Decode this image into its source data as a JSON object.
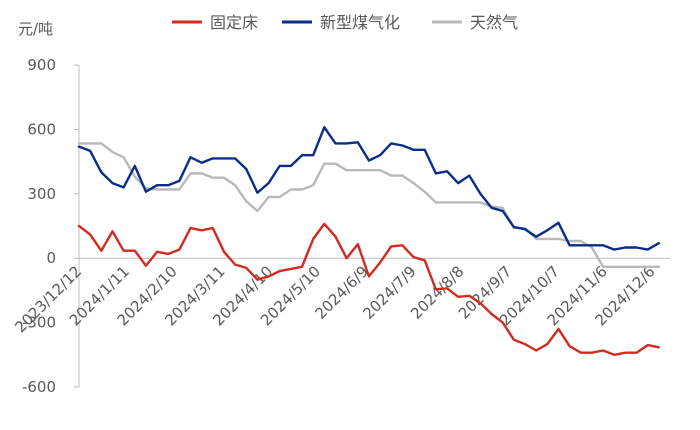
{
  "chart_data": {
    "type": "line",
    "title": "",
    "xlabel": "",
    "ylabel": "元/吨",
    "ylim": [
      -600,
      900
    ],
    "yticks": [
      -600,
      -300,
      0,
      300,
      600,
      900
    ],
    "grid": false,
    "legend_position": "top",
    "x_tick_labels": [
      "2023/12/12",
      "2024/1/11",
      "2024/2/10",
      "2024/3/11",
      "2024/4/10",
      "2024/5/10",
      "2024/6/9",
      "2024/7/9",
      "2024/8/8",
      "2024/9/7",
      "2024/10/7",
      "2024/11/6",
      "2024/12/6"
    ],
    "x": [
      "2023-12-12",
      "2023-12-15",
      "2023-12-19",
      "2023-12-22",
      "2023-12-26",
      "2023-12-29",
      "2024-01-02",
      "2024-01-05",
      "2024-01-09",
      "2024-01-12",
      "2024-01-16",
      "2024-01-19",
      "2024-01-23",
      "2024-01-26",
      "2024-01-30",
      "2024-02-02",
      "2024-02-06",
      "2024-02-09",
      "2024-02-13",
      "2024-02-16",
      "2024-02-20",
      "2024-02-23",
      "2024-02-27",
      "2024-03-01",
      "2024-03-05",
      "2024-03-08",
      "2024-03-12",
      "2024-03-15",
      "2024-03-19",
      "2024-03-22",
      "2024-03-26",
      "2024-03-29",
      "2024-04-02",
      "2024-04-05",
      "2024-04-09",
      "2024-04-12",
      "2024-04-16",
      "2024-04-19",
      "2024-04-23",
      "2024-04-26",
      "2024-04-30",
      "2024-05-03",
      "2024-05-07",
      "2024-05-10",
      "2024-05-14",
      "2024-05-17",
      "2024-05-21",
      "2024-05-24",
      "2024-05-28",
      "2024-05-31",
      "2024-06-04",
      "2024-06-07",
      "2024-06-11",
      "2024-06-14",
      "2024-06-18",
      "2024-06-21",
      "2024-06-25",
      "2024-06-28",
      "2024-07-02",
      "2024-07-05",
      "2024-07-09",
      "2024-07-12",
      "2024-07-16",
      "2024-07-19",
      "2024-07-23",
      "2024-07-26",
      "2024-07-30",
      "2024-08-02",
      "2024-08-06",
      "2024-08-09",
      "2024-08-13",
      "2024-08-16",
      "2024-08-20",
      "2024-08-23",
      "2024-08-27",
      "2024-08-30",
      "2024-09-03",
      "2024-09-06",
      "2024-09-10",
      "2024-09-13",
      "2024-09-17",
      "2024-09-20",
      "2024-09-24",
      "2024-09-27",
      "2024-10-01",
      "2024-10-04",
      "2024-10-08",
      "2024-10-11",
      "2024-10-15",
      "2024-10-18",
      "2024-10-22",
      "2024-10-25",
      "2024-10-29",
      "2024-11-01",
      "2024-11-05",
      "2024-11-08",
      "2024-11-12",
      "2024-11-15",
      "2024-11-19",
      "2024-11-22",
      "2024-11-26",
      "2024-11-29",
      "2024-12-03",
      "2024-12-06",
      "2024-12-10",
      "2024-12-13",
      "2024-12-17"
    ],
    "series": [
      {
        "name": "固定床",
        "color": "#d42a20",
        "points": [
          [
            "2023-12-12",
            150
          ],
          [
            "2023-12-19",
            110
          ],
          [
            "2023-12-26",
            35
          ],
          [
            "2024-01-02",
            125
          ],
          [
            "2024-01-09",
            35
          ],
          [
            "2024-01-16",
            35
          ],
          [
            "2024-01-23",
            -35
          ],
          [
            "2024-01-30",
            30
          ],
          [
            "2024-02-06",
            20
          ],
          [
            "2024-02-13",
            40
          ],
          [
            "2024-02-20",
            140
          ],
          [
            "2024-02-27",
            130
          ],
          [
            "2024-03-05",
            140
          ],
          [
            "2024-03-12",
            30
          ],
          [
            "2024-03-19",
            -30
          ],
          [
            "2024-03-26",
            -45
          ],
          [
            "2024-04-02",
            -100
          ],
          [
            "2024-04-09",
            -85
          ],
          [
            "2024-04-16",
            -60
          ],
          [
            "2024-04-23",
            -50
          ],
          [
            "2024-04-30",
            -40
          ],
          [
            "2024-05-07",
            90
          ],
          [
            "2024-05-14",
            160
          ],
          [
            "2024-05-21",
            100
          ],
          [
            "2024-05-28",
            0
          ],
          [
            "2024-06-04",
            65
          ],
          [
            "2024-06-11",
            -85
          ],
          [
            "2024-06-18",
            -20
          ],
          [
            "2024-06-25",
            55
          ],
          [
            "2024-07-02",
            60
          ],
          [
            "2024-07-09",
            5
          ],
          [
            "2024-07-16",
            -10
          ],
          [
            "2024-07-23",
            -145
          ],
          [
            "2024-07-30",
            -140
          ],
          [
            "2024-08-06",
            -180
          ],
          [
            "2024-08-13",
            -175
          ],
          [
            "2024-08-20",
            -210
          ],
          [
            "2024-08-27",
            -260
          ],
          [
            "2024-09-03",
            -300
          ],
          [
            "2024-09-10",
            -380
          ],
          [
            "2024-09-17",
            -400
          ],
          [
            "2024-09-24",
            -430
          ],
          [
            "2024-10-01",
            -400
          ],
          [
            "2024-10-08",
            -330
          ],
          [
            "2024-10-15",
            -410
          ],
          [
            "2024-10-22",
            -440
          ],
          [
            "2024-10-29",
            -440
          ],
          [
            "2024-11-05",
            -430
          ],
          [
            "2024-11-12",
            -450
          ],
          [
            "2024-11-19",
            -440
          ],
          [
            "2024-11-26",
            -440
          ],
          [
            "2024-12-03",
            -405
          ],
          [
            "2024-12-10",
            -415
          ]
        ]
      },
      {
        "name": "新型煤气化",
        "color": "#0a2e86",
        "points": [
          [
            "2023-12-12",
            520
          ],
          [
            "2023-12-19",
            500
          ],
          [
            "2023-12-26",
            400
          ],
          [
            "2024-01-02",
            350
          ],
          [
            "2024-01-09",
            330
          ],
          [
            "2024-01-16",
            430
          ],
          [
            "2024-01-23",
            310
          ],
          [
            "2024-01-30",
            340
          ],
          [
            "2024-02-06",
            340
          ],
          [
            "2024-02-13",
            360
          ],
          [
            "2024-02-20",
            470
          ],
          [
            "2024-02-27",
            445
          ],
          [
            "2024-03-05",
            465
          ],
          [
            "2024-03-12",
            465
          ],
          [
            "2024-03-19",
            465
          ],
          [
            "2024-03-26",
            415
          ],
          [
            "2024-04-02",
            305
          ],
          [
            "2024-04-09",
            350
          ],
          [
            "2024-04-16",
            430
          ],
          [
            "2024-04-23",
            430
          ],
          [
            "2024-04-30",
            480
          ],
          [
            "2024-05-07",
            480
          ],
          [
            "2024-05-14",
            610
          ],
          [
            "2024-05-21",
            535
          ],
          [
            "2024-05-28",
            535
          ],
          [
            "2024-06-04",
            540
          ],
          [
            "2024-06-11",
            455
          ],
          [
            "2024-06-18",
            480
          ],
          [
            "2024-06-25",
            535
          ],
          [
            "2024-07-02",
            525
          ],
          [
            "2024-07-09",
            505
          ],
          [
            "2024-07-16",
            505
          ],
          [
            "2024-07-23",
            395
          ],
          [
            "2024-07-30",
            405
          ],
          [
            "2024-08-06",
            350
          ],
          [
            "2024-08-13",
            385
          ],
          [
            "2024-08-20",
            300
          ],
          [
            "2024-08-27",
            235
          ],
          [
            "2024-09-03",
            220
          ],
          [
            "2024-09-10",
            145
          ],
          [
            "2024-09-17",
            135
          ],
          [
            "2024-09-24",
            100
          ],
          [
            "2024-10-01",
            130
          ],
          [
            "2024-10-08",
            165
          ],
          [
            "2024-10-15",
            60
          ],
          [
            "2024-10-22",
            60
          ],
          [
            "2024-10-29",
            60
          ],
          [
            "2024-11-05",
            60
          ],
          [
            "2024-11-12",
            40
          ],
          [
            "2024-11-19",
            50
          ],
          [
            "2024-11-26",
            50
          ],
          [
            "2024-12-03",
            40
          ],
          [
            "2024-12-10",
            70
          ]
        ]
      },
      {
        "name": "天然气",
        "color": "#b9b9b9",
        "points": [
          [
            "2023-12-12",
            535
          ],
          [
            "2023-12-19",
            535
          ],
          [
            "2023-12-26",
            535
          ],
          [
            "2024-01-02",
            495
          ],
          [
            "2024-01-09",
            470
          ],
          [
            "2024-01-16",
            380
          ],
          [
            "2024-01-23",
            325
          ],
          [
            "2024-01-30",
            320
          ],
          [
            "2024-02-06",
            320
          ],
          [
            "2024-02-13",
            320
          ],
          [
            "2024-02-20",
            395
          ],
          [
            "2024-02-27",
            395
          ],
          [
            "2024-03-05",
            375
          ],
          [
            "2024-03-12",
            375
          ],
          [
            "2024-03-19",
            340
          ],
          [
            "2024-03-26",
            265
          ],
          [
            "2024-04-02",
            220
          ],
          [
            "2024-04-09",
            285
          ],
          [
            "2024-04-16",
            285
          ],
          [
            "2024-04-23",
            320
          ],
          [
            "2024-04-30",
            320
          ],
          [
            "2024-05-07",
            340
          ],
          [
            "2024-05-14",
            440
          ],
          [
            "2024-05-21",
            440
          ],
          [
            "2024-05-28",
            410
          ],
          [
            "2024-06-04",
            410
          ],
          [
            "2024-06-11",
            410
          ],
          [
            "2024-06-18",
            410
          ],
          [
            "2024-06-25",
            385
          ],
          [
            "2024-07-02",
            385
          ],
          [
            "2024-07-09",
            350
          ],
          [
            "2024-07-16",
            310
          ],
          [
            "2024-07-23",
            260
          ],
          [
            "2024-07-30",
            260
          ],
          [
            "2024-08-06",
            260
          ],
          [
            "2024-08-13",
            260
          ],
          [
            "2024-08-20",
            260
          ],
          [
            "2024-08-27",
            240
          ],
          [
            "2024-09-03",
            235
          ],
          [
            "2024-09-10",
            140
          ],
          [
            "2024-09-17",
            140
          ],
          [
            "2024-09-24",
            90
          ],
          [
            "2024-10-01",
            90
          ],
          [
            "2024-10-08",
            90
          ],
          [
            "2024-10-15",
            80
          ],
          [
            "2024-10-22",
            80
          ],
          [
            "2024-10-29",
            50
          ],
          [
            "2024-11-05",
            -40
          ],
          [
            "2024-11-12",
            -40
          ],
          [
            "2024-11-19",
            -40
          ],
          [
            "2024-11-26",
            -40
          ],
          [
            "2024-12-03",
            -40
          ],
          [
            "2024-12-10",
            -40
          ]
        ]
      }
    ]
  }
}
